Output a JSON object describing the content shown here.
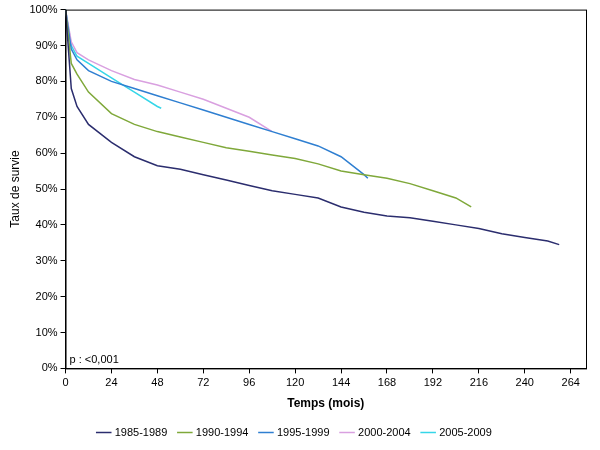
{
  "chart_data": {
    "type": "line",
    "x_label": "Temps (mois)",
    "y_label": "Taux de survie",
    "annotation": "p : <0,001",
    "xlim": [
      0,
      272
    ],
    "xticks": [
      0,
      24,
      48,
      72,
      96,
      120,
      144,
      168,
      192,
      216,
      240,
      264
    ],
    "ylim": [
      0,
      100
    ],
    "yticks": [
      {
        "value": 0,
        "label": "0%"
      },
      {
        "value": 10,
        "label": "10%"
      },
      {
        "value": 20,
        "label": "20%"
      },
      {
        "value": 30,
        "label": "30%"
      },
      {
        "value": 40,
        "label": "40%"
      },
      {
        "value": 50,
        "label": "50%"
      },
      {
        "value": 60,
        "label": "60%"
      },
      {
        "value": 70,
        "label": "70%"
      },
      {
        "value": 80,
        "label": "80%"
      },
      {
        "value": 90,
        "label": "90%"
      },
      {
        "value": 100,
        "label": "100%"
      }
    ],
    "grid": false,
    "legend": "bottom",
    "series": [
      {
        "name": "1985-1989",
        "color": "#2b2d6e",
        "x": [
          0,
          3,
          6,
          12,
          24,
          36,
          48,
          60,
          72,
          84,
          96,
          108,
          120,
          132,
          144,
          156,
          168,
          180,
          192,
          204,
          216,
          228,
          240,
          252,
          258
        ],
        "values": [
          100,
          78,
          73,
          68,
          63,
          59,
          56.5,
          55.5,
          54,
          52.5,
          51,
          49.5,
          48.5,
          47.5,
          45,
          43.5,
          42.5,
          42,
          41,
          40,
          39,
          37.5,
          36.5,
          35.5,
          34.5
        ]
      },
      {
        "name": "1990-1994",
        "color": "#7fa83a",
        "x": [
          0,
          3,
          6,
          12,
          24,
          36,
          48,
          60,
          72,
          84,
          96,
          108,
          120,
          132,
          144,
          156,
          168,
          180,
          192,
          204,
          212
        ],
        "values": [
          100,
          85,
          82,
          77,
          71,
          68,
          66,
          64.5,
          63,
          61.5,
          60.5,
          59.5,
          58.5,
          57,
          55,
          54,
          53,
          51.5,
          49.5,
          47.5,
          45
        ]
      },
      {
        "name": "1995-1999",
        "color": "#2f7fd1",
        "x": [
          0,
          3,
          6,
          12,
          24,
          36,
          48,
          60,
          72,
          84,
          96,
          108,
          120,
          132,
          144,
          156,
          158
        ],
        "values": [
          100,
          89,
          86,
          83,
          80,
          78,
          76,
          74,
          72,
          70,
          68,
          66,
          64,
          62,
          59,
          54,
          53
        ]
      },
      {
        "name": "2000-2004",
        "color": "#d9a0e0",
        "x": [
          0,
          3,
          6,
          12,
          24,
          36,
          48,
          60,
          72,
          84,
          96,
          108
        ],
        "values": [
          100,
          91,
          88,
          86,
          83,
          80.5,
          79,
          77,
          75,
          72.5,
          70,
          66
        ]
      },
      {
        "name": "2005-2009",
        "color": "#35d6e8",
        "x": [
          0,
          3,
          6,
          12,
          24,
          36,
          48,
          50
        ],
        "values": [
          100,
          90,
          87,
          85,
          81,
          77,
          73,
          72.5
        ]
      }
    ]
  }
}
